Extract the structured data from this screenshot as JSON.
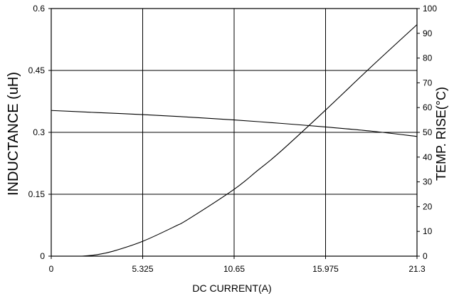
{
  "chart_data": {
    "type": "line",
    "xlabel": "DC CURRENT(A)",
    "ylabel_left": "INDUCTANCE (uH)",
    "ylabel_right": "TEMP. RISE(°C)",
    "x_ticks": [
      "0",
      "5.325",
      "10.65",
      "15.975",
      "21.3"
    ],
    "y_left_ticks": [
      "0",
      "0.15",
      "0.3",
      "0.45",
      "0.6"
    ],
    "y_right_ticks": [
      "0",
      "10",
      "20",
      "30",
      "40",
      "50",
      "60",
      "70",
      "80",
      "90",
      "100"
    ],
    "xlim": [
      0,
      21.3
    ],
    "ylim_left": [
      0,
      0.6
    ],
    "ylim_right": [
      0,
      100
    ],
    "grid": {
      "vertical_at": [
        5.325,
        10.65,
        15.975
      ],
      "horizontal_at_left": [
        0.15,
        0.3,
        0.45
      ]
    },
    "series": [
      {
        "axis": "left",
        "x": [
          0,
          2.663,
          5.325,
          7.988,
          10.65,
          13.313,
          15.975,
          18.638,
          21.3
        ],
        "y": [
          0.353,
          0.348,
          0.343,
          0.337,
          0.33,
          0.322,
          0.313,
          0.303,
          0.29
        ]
      },
      {
        "axis": "right",
        "x": [
          1.8,
          2.663,
          3.6,
          5.325,
          7.2,
          8.0,
          10.65,
          12.0,
          13.313,
          15.975,
          18.638,
          21.3
        ],
        "y": [
          0,
          0.6,
          2,
          6,
          12,
          15,
          27,
          34.5,
          42,
          59,
          76.5,
          93.5
        ]
      }
    ]
  }
}
